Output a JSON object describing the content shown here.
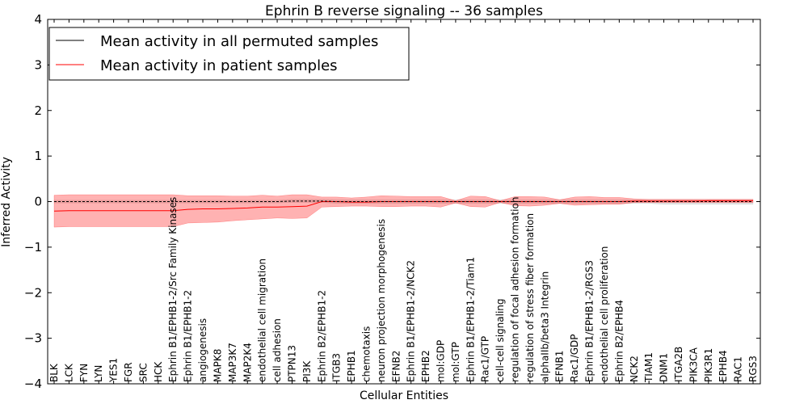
{
  "chart_data": {
    "type": "line",
    "title": "Ephrin B reverse signaling -- 36 samples",
    "xlabel": "Cellular Entities",
    "ylabel": "Inferred Activity",
    "ylim": [
      -4,
      4
    ],
    "yticks": [
      -4,
      -3,
      -2,
      -1,
      0,
      1,
      2,
      3,
      4
    ],
    "yticklabels": [
      "−4",
      "−3",
      "−2",
      "−1",
      "0",
      "1",
      "2",
      "3",
      "4"
    ],
    "grid": false,
    "legend_position": "top-left",
    "categories": [
      "BLK",
      "LCK",
      "FYN",
      "LYN",
      "YES1",
      "FGR",
      "SRC",
      "HCK",
      "Ephrin B1/EPHB1-2/Src Family Kinases",
      "Ephrin B1/EPHB1-2",
      "angiogenesis",
      "MAPK8",
      "MAP3K7",
      "MAP2K4",
      "endothelial cell migration",
      "cell adhesion",
      "PTPN13",
      "PI3K",
      "Ephrin B2/EPHB1-2",
      "ITGB3",
      "EPHB1",
      "chemotaxis",
      "neuron projection morphogenesis",
      "EFNB2",
      "Ephrin B1/EPHB1-2/NCK2",
      "EPHB2",
      "mol:GDP",
      "mol:GTP",
      "Ephrin B1/EPHB1-2/Tiam1",
      "Rac1/GTP",
      "cell-cell signaling",
      "regulation of focal adhesion formation",
      "regulation of stress fiber formation",
      "alphaIIb/beta3 Integrin",
      "EFNB1",
      "Rac1/GDP",
      "Ephrin B1/EPHB1-2/RGS3",
      "endothelial cell proliferation",
      "Ephrin B2/EPHB4",
      "NCK2",
      "TIAM1",
      "DNM1",
      "ITGA2B",
      "PIK3CA",
      "PIK3R1",
      "EPHB4",
      "RAC1",
      "RGS3"
    ],
    "series": [
      {
        "name": "Mean activity in all permuted samples",
        "color": "#000000",
        "style": "dashed",
        "values": [
          0,
          0,
          0,
          0,
          0,
          0,
          0,
          0,
          0,
          0,
          0,
          0,
          0,
          0,
          0,
          0,
          0.01,
          0.01,
          0.01,
          0,
          0,
          0,
          0,
          0,
          0,
          0,
          0,
          0,
          0,
          0,
          0,
          0,
          0,
          0,
          0,
          0,
          0,
          0,
          0,
          0,
          0,
          0,
          0,
          0,
          0,
          0,
          0,
          0
        ],
        "band_upper": [
          0.03,
          0.03,
          0.03,
          0.03,
          0.03,
          0.03,
          0.03,
          0.03,
          0.03,
          0.03,
          0.03,
          0.03,
          0.03,
          0.03,
          0.03,
          0.03,
          0.05,
          0.05,
          0.05,
          0.04,
          0.04,
          0.04,
          0.04,
          0.04,
          0.04,
          0.04,
          0.04,
          0.04,
          0.04,
          0.04,
          0.04,
          0.04,
          0.04,
          0.04,
          0.04,
          0.04,
          0.04,
          0.04,
          0.04,
          0.04,
          0.04,
          0.04,
          0.04,
          0.04,
          0.04,
          0.04,
          0.04,
          0.04
        ],
        "band_lower": [
          -0.03,
          -0.03,
          -0.03,
          -0.03,
          -0.03,
          -0.03,
          -0.03,
          -0.03,
          -0.03,
          -0.03,
          -0.03,
          -0.03,
          -0.03,
          -0.03,
          -0.03,
          -0.03,
          -0.02,
          -0.02,
          -0.02,
          -0.04,
          -0.04,
          -0.04,
          -0.04,
          -0.04,
          -0.04,
          -0.04,
          -0.04,
          -0.04,
          -0.04,
          -0.04,
          -0.04,
          -0.04,
          -0.04,
          -0.04,
          -0.04,
          -0.04,
          -0.04,
          -0.04,
          -0.04,
          -0.04,
          -0.04,
          -0.06,
          -0.06,
          -0.06,
          -0.06,
          -0.06,
          -0.06,
          -0.06
        ],
        "band_color": "#bbbbbb"
      },
      {
        "name": "Mean activity in patient samples",
        "color": "#ff0000",
        "style": "solid",
        "values": [
          -0.21,
          -0.2,
          -0.2,
          -0.2,
          -0.2,
          -0.2,
          -0.2,
          -0.2,
          -0.2,
          -0.17,
          -0.16,
          -0.16,
          -0.15,
          -0.14,
          -0.12,
          -0.12,
          -0.11,
          -0.1,
          0,
          0,
          -0.01,
          -0.01,
          0,
          0,
          0,
          0,
          0,
          0,
          0,
          0,
          0,
          0,
          0,
          0,
          0,
          0,
          0,
          0,
          0,
          0.01,
          0.01,
          0.01,
          0.01,
          0.01,
          0.02,
          0.02,
          0.02,
          0.02
        ],
        "band_upper": [
          0.14,
          0.15,
          0.15,
          0.15,
          0.15,
          0.15,
          0.15,
          0.15,
          0.15,
          0.13,
          0.13,
          0.13,
          0.12,
          0.12,
          0.14,
          0.12,
          0.15,
          0.15,
          0.1,
          0.1,
          0.08,
          0.1,
          0.13,
          0.12,
          0.11,
          0.11,
          0.11,
          0.02,
          0.12,
          0.11,
          0.02,
          0.11,
          0.11,
          0.1,
          0.04,
          0.1,
          0.11,
          0.09,
          0.09,
          0.06,
          0.05,
          0.05,
          0.05,
          0.05,
          0.05,
          0.05,
          0.05,
          0.05
        ],
        "band_lower": [
          -0.56,
          -0.55,
          -0.55,
          -0.55,
          -0.55,
          -0.55,
          -0.55,
          -0.55,
          -0.55,
          -0.47,
          -0.46,
          -0.45,
          -0.42,
          -0.4,
          -0.38,
          -0.36,
          -0.37,
          -0.36,
          -0.12,
          -0.11,
          -0.1,
          -0.1,
          -0.11,
          -0.11,
          -0.1,
          -0.1,
          -0.12,
          -0.03,
          -0.11,
          -0.12,
          -0.02,
          -0.09,
          -0.1,
          -0.08,
          -0.04,
          -0.08,
          -0.07,
          -0.06,
          -0.06,
          -0.02,
          -0.02,
          -0.02,
          -0.02,
          -0.02,
          -0.02,
          -0.02,
          -0.02,
          -0.02
        ],
        "band_color": "#ff0000"
      }
    ]
  }
}
